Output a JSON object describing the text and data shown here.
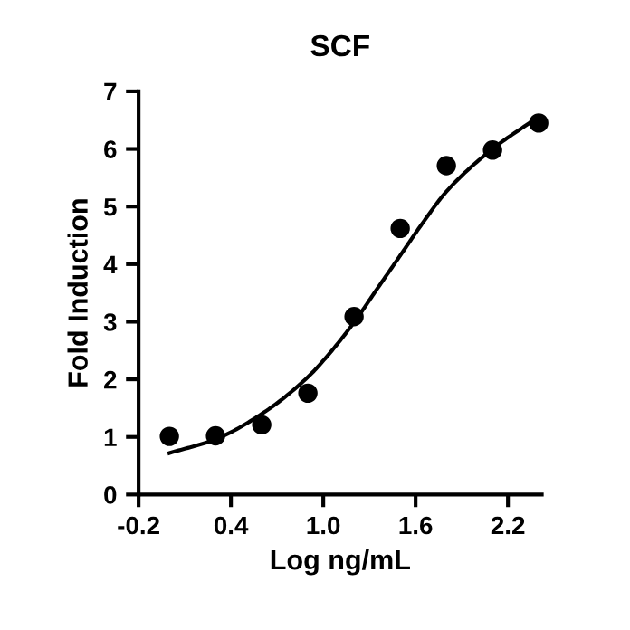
{
  "chart_data": {
    "type": "scatter",
    "title": "SCF",
    "xlabel": "Log ng/mL",
    "ylabel": "Fold Induction",
    "xlim": [
      -0.2,
      2.42
    ],
    "xticks": [
      {
        "value": -0.2,
        "label": "-0.2"
      },
      {
        "value": 0.4,
        "label": "0.4"
      },
      {
        "value": 1.0,
        "label": "1.0"
      },
      {
        "value": 1.6,
        "label": "1.6"
      },
      {
        "value": 2.2,
        "label": "2.2"
      }
    ],
    "ylim": [
      0,
      7
    ],
    "yticks": [
      0,
      1,
      2,
      3,
      4,
      5,
      6,
      7
    ],
    "grid": false,
    "legend": false,
    "series": [
      {
        "color": "#000000",
        "marker": "circle",
        "x": [
          0.0,
          0.3,
          0.6,
          0.9,
          1.2,
          1.5,
          1.8,
          2.1,
          2.4
        ],
        "values": [
          1.01,
          1.02,
          1.21,
          1.76,
          3.09,
          4.62,
          5.71,
          5.98,
          6.45
        ]
      },
      {
        "type": "line",
        "color": "#000000",
        "marker": "none",
        "line_style": "solid",
        "x": [
          0.0,
          0.3,
          0.6,
          0.9,
          1.05,
          1.2,
          1.35,
          1.5,
          1.65,
          1.8,
          2.1,
          2.4
        ],
        "values": [
          0.72,
          0.96,
          1.4,
          2.04,
          2.48,
          2.99,
          3.57,
          4.15,
          4.73,
          5.26,
          6.0,
          6.56
        ]
      }
    ]
  }
}
